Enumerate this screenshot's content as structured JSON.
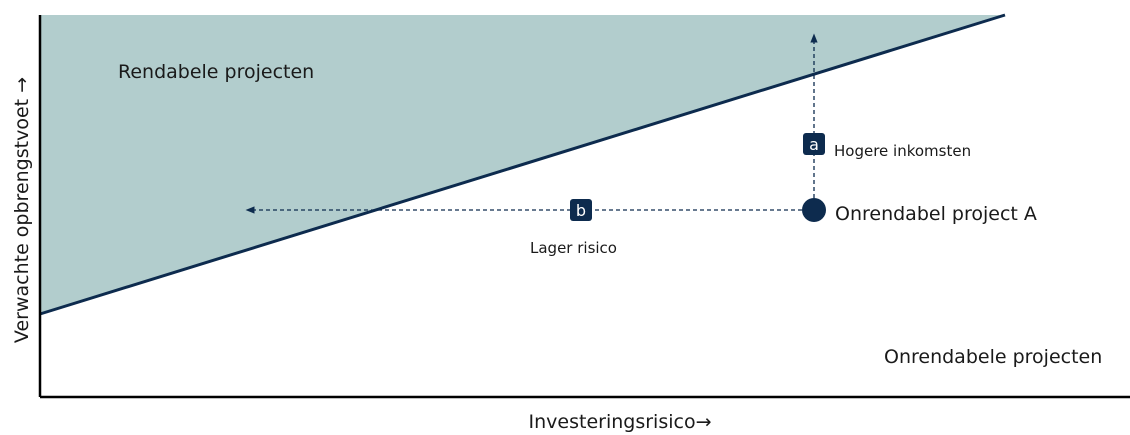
{
  "axes": {
    "x_label": "Investeringsrisico→",
    "y_label": "Verwachte opbrengstvoet →"
  },
  "regions": {
    "profitable": "Rendabele projecten",
    "unprofitable": "Onrendabele projecten"
  },
  "project": {
    "label": "Onrendabel project A"
  },
  "moves": [
    {
      "marker": "a",
      "label": "Hogere inkomsten"
    },
    {
      "marker": "b",
      "label": "Lager risico"
    }
  ]
}
